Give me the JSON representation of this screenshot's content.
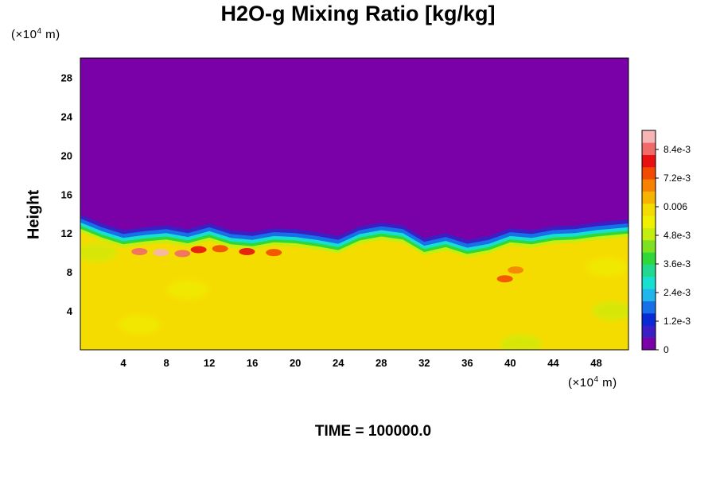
{
  "chart_data": {
    "type": "heatmap",
    "title": "H2O-g Mixing Ratio [kg/kg]",
    "ylabel": "Height",
    "x_unit": {
      "prefix": "(×10",
      "exp": "4",
      "suffix": " m)"
    },
    "y_unit": {
      "prefix": "(×10",
      "exp": "4",
      "suffix": " m)"
    },
    "xlim": [
      0,
      51
    ],
    "ylim": [
      0,
      30
    ],
    "xticks": [
      4,
      8,
      12,
      16,
      20,
      24,
      28,
      32,
      36,
      40,
      44,
      48
    ],
    "yticks": [
      4,
      8,
      12,
      16,
      20,
      24,
      28
    ],
    "colorbar": {
      "min": 0,
      "max": 0.0092,
      "tick_values": [
        0,
        0.0012,
        0.0024,
        0.0036,
        0.0048,
        0.006,
        0.0072,
        0.0084
      ],
      "tick_labels": [
        "0",
        "1.2e-3",
        "2.4e-3",
        "3.6e-3",
        "4.8e-3",
        "0.006",
        "7.2e-3",
        "8.4e-3"
      ],
      "colors": [
        "#7a00a8",
        "#3c1fc4",
        "#0a2ad6",
        "#1870e8",
        "#1fb6ee",
        "#18e0d0",
        "#20d890",
        "#2ed838",
        "#7ee020",
        "#c4ee10",
        "#eef000",
        "#f5dc00",
        "#f6b400",
        "#f58200",
        "#f24a00",
        "#e81010",
        "#f06a6a",
        "#f7b4b4"
      ]
    },
    "field": {
      "description_hidden": false,
      "upper_value": 0.0,
      "lower_value": 0.0061,
      "interface_height": [
        [
          0,
          12.8
        ],
        [
          2,
          11.9
        ],
        [
          4,
          11.2
        ],
        [
          6,
          11.5
        ],
        [
          8,
          11.7
        ],
        [
          10,
          11.3
        ],
        [
          12,
          11.9
        ],
        [
          14,
          11.2
        ],
        [
          16,
          11.0
        ],
        [
          18,
          11.4
        ],
        [
          20,
          11.3
        ],
        [
          22,
          11.0
        ],
        [
          24,
          10.6
        ],
        [
          26,
          11.6
        ],
        [
          28,
          12.0
        ],
        [
          30,
          11.7
        ],
        [
          32,
          10.4
        ],
        [
          34,
          10.9
        ],
        [
          36,
          10.2
        ],
        [
          38,
          10.6
        ],
        [
          40,
          11.4
        ],
        [
          42,
          11.2
        ],
        [
          44,
          11.6
        ],
        [
          46,
          11.7
        ],
        [
          48,
          12.0
        ],
        [
          51,
          12.3
        ]
      ],
      "moist_patches": [
        {
          "x": 5.5,
          "y": 10.1,
          "value": 0.0082
        },
        {
          "x": 7.5,
          "y": 10.0,
          "value": 0.0088
        },
        {
          "x": 9.5,
          "y": 9.9,
          "value": 0.0085
        },
        {
          "x": 11.0,
          "y": 10.3,
          "value": 0.0078
        },
        {
          "x": 13.0,
          "y": 10.4,
          "value": 0.0074
        },
        {
          "x": 15.5,
          "y": 10.1,
          "value": 0.008
        },
        {
          "x": 18.0,
          "y": 10.0,
          "value": 0.0072
        },
        {
          "x": 39.5,
          "y": 7.3,
          "value": 0.0072
        },
        {
          "x": 40.5,
          "y": 8.2,
          "value": 0.007
        }
      ],
      "dry_patches": [
        {
          "x": 1.5,
          "y": 10.0,
          "value": 0.0048
        },
        {
          "x": 49.5,
          "y": 4.0,
          "value": 0.0049
        },
        {
          "x": 49.0,
          "y": 8.5,
          "value": 0.0052
        },
        {
          "x": 41.0,
          "y": 0.6,
          "value": 0.005
        },
        {
          "x": 10.0,
          "y": 6.2,
          "value": 0.0056
        },
        {
          "x": 5.5,
          "y": 2.6,
          "value": 0.0056
        },
        {
          "x": 21.0,
          "y": 3.8,
          "value": 0.0057
        }
      ]
    },
    "time_label": "TIME = 100000.0"
  }
}
